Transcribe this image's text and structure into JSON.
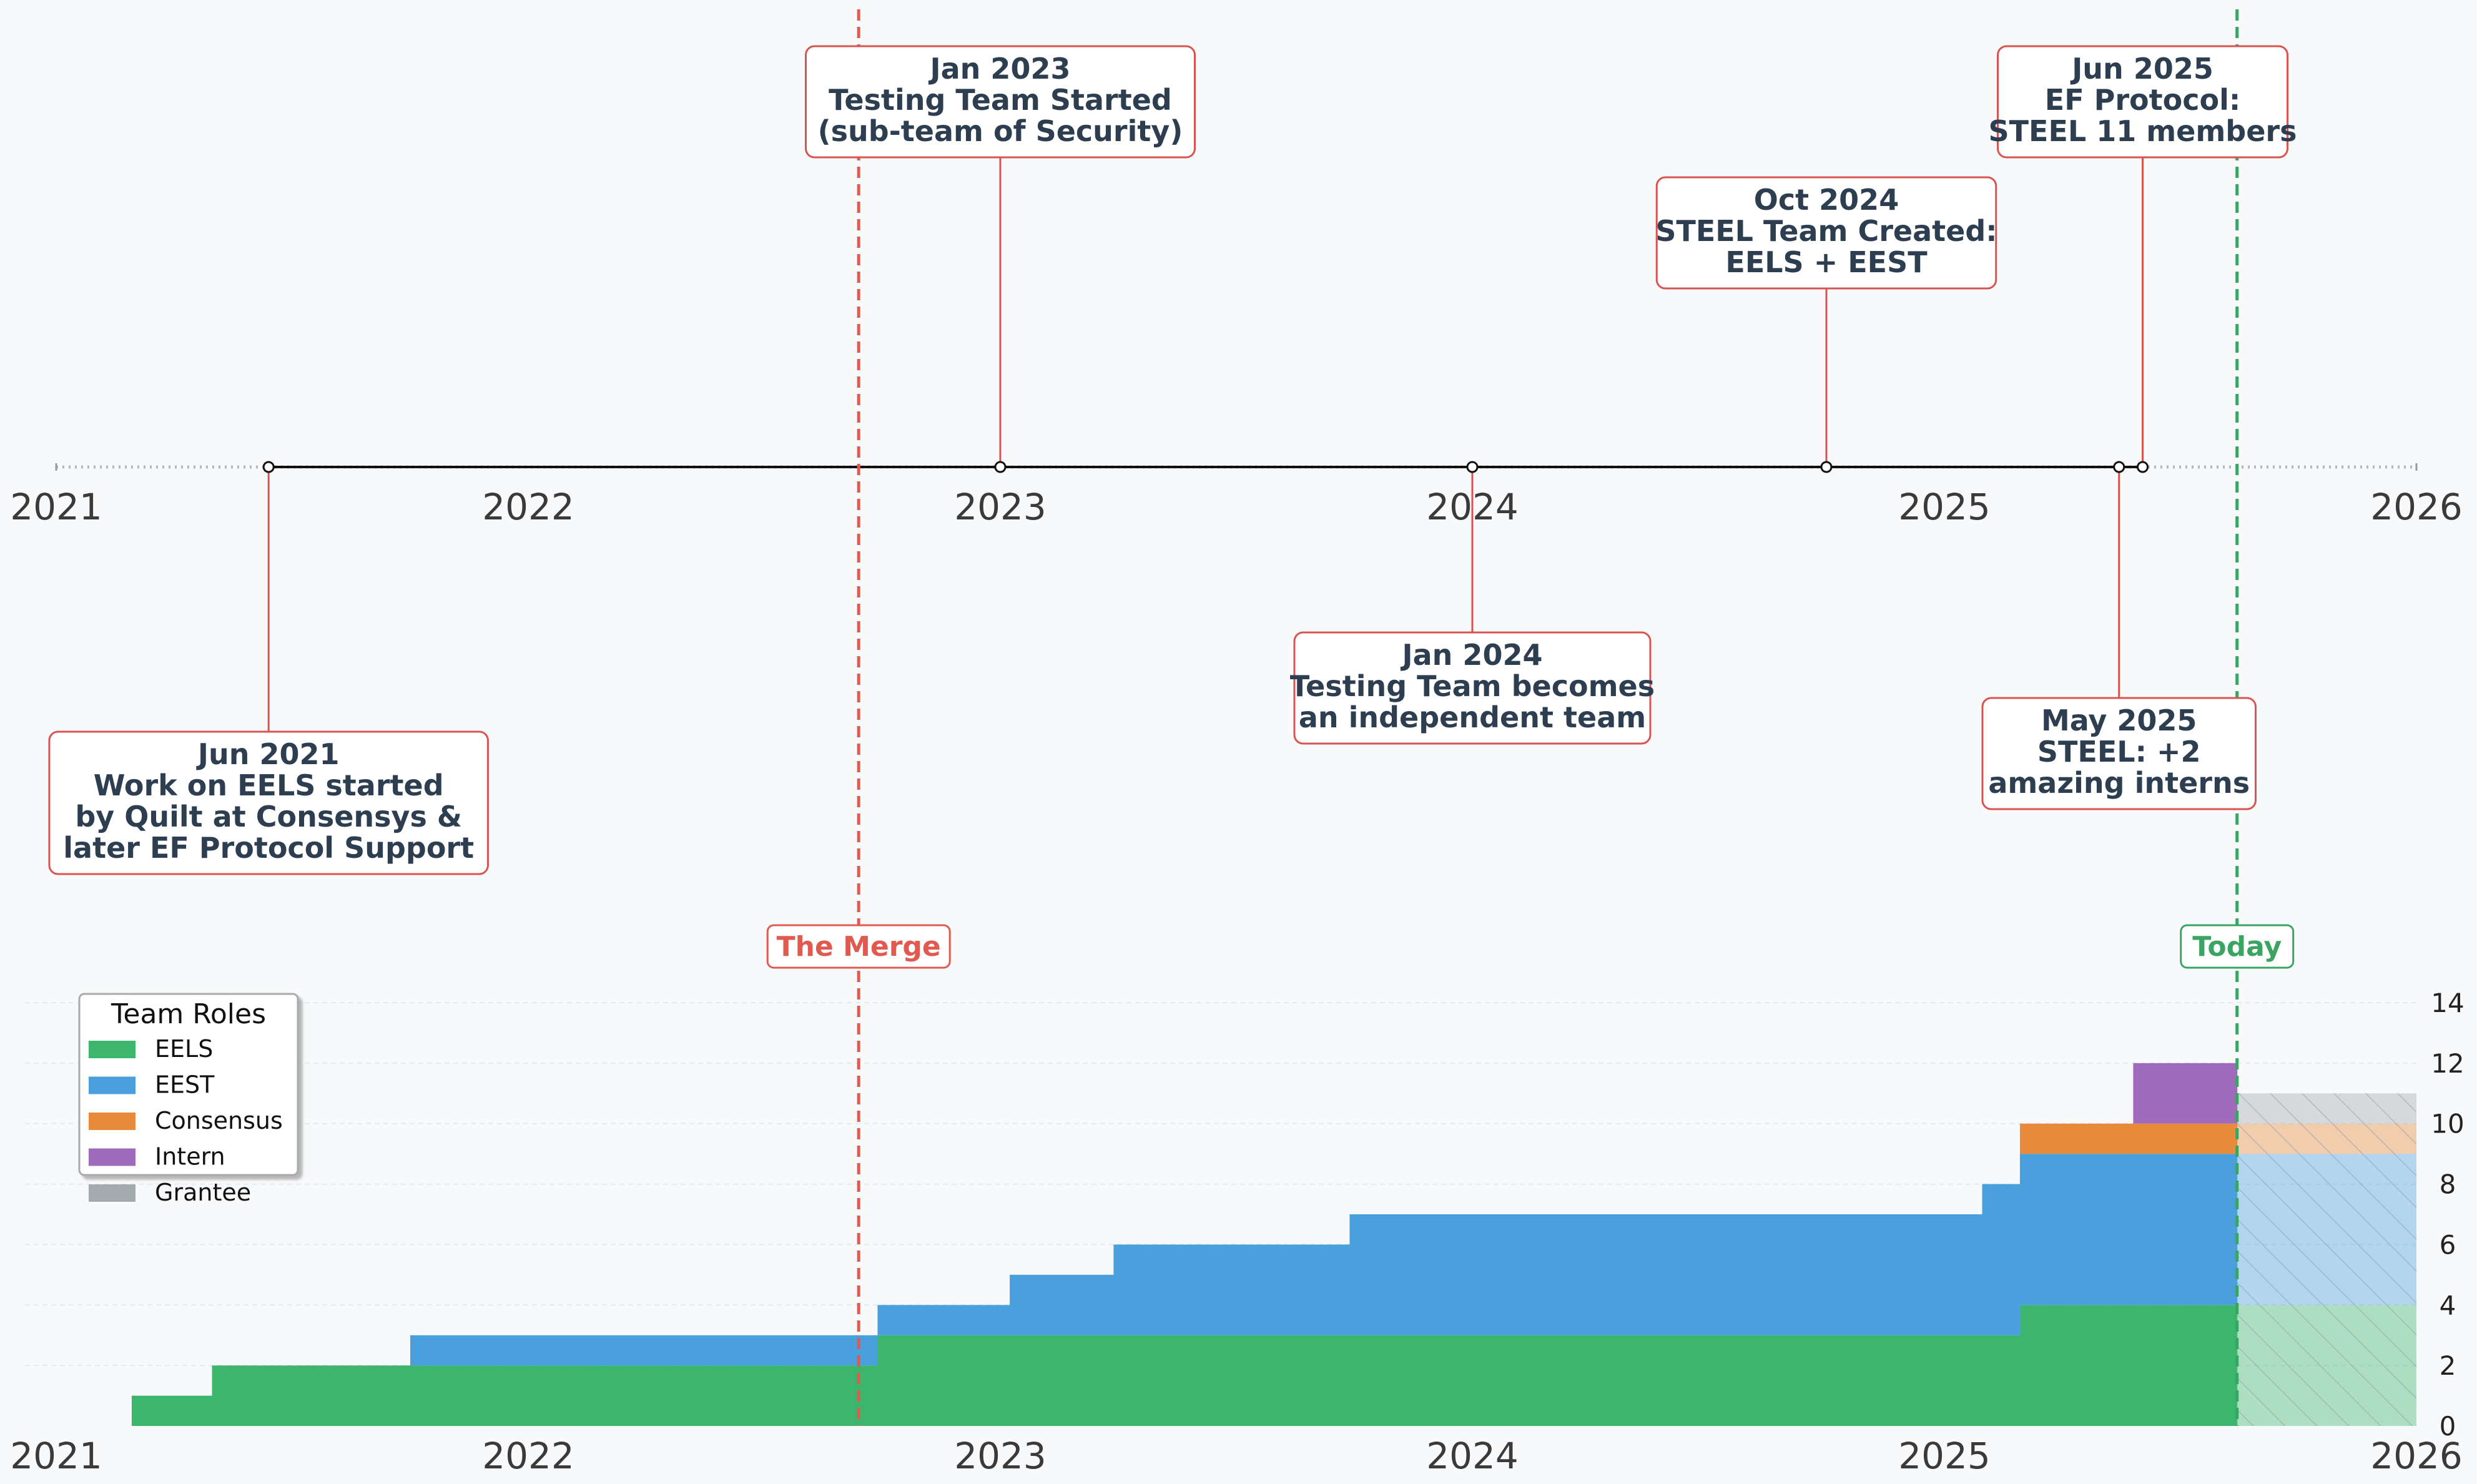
{
  "chart_data": [
    {
      "type": "timeline",
      "x_range": [
        2021,
        2026
      ],
      "year_ticks": [
        "2021",
        "2022",
        "2023",
        "2024",
        "2025",
        "2026"
      ],
      "events": [
        {
          "date": 2021.45,
          "side": "below",
          "lines": [
            "Jun 2021",
            "Work on EELS started",
            "by Quilt at Consensys &",
            "later EF Protocol Support"
          ]
        },
        {
          "date": 2023.0,
          "side": "above",
          "lines": [
            "Jan 2023",
            "Testing Team Started",
            "(sub-team of Security)"
          ]
        },
        {
          "date": 2024.0,
          "side": "below",
          "lines": [
            "Jan 2024",
            "Testing Team becomes",
            "an independent team"
          ]
        },
        {
          "date": 2024.75,
          "side": "above",
          "lines": [
            "Oct 2024",
            "STEEL Team Created:",
            "EELS + EEST"
          ]
        },
        {
          "date": 2025.37,
          "side": "below",
          "lines": [
            "May 2025",
            "STEEL: +2",
            "amazing interns"
          ]
        },
        {
          "date": 2025.42,
          "side": "above",
          "lines": [
            "Jun 2025",
            "EF Protocol:",
            "STEEL 11 members"
          ]
        }
      ],
      "markers": [
        {
          "label": "The Merge",
          "date": 2022.7,
          "color": "#e05a4f"
        },
        {
          "label": "Today",
          "date": 2025.62,
          "color": "#3aa463"
        }
      ]
    },
    {
      "type": "area",
      "stacked": true,
      "step": true,
      "x_range": [
        2021,
        2026
      ],
      "x_ticks": [
        "2021",
        "2022",
        "2023",
        "2024",
        "2025",
        "2026"
      ],
      "ylim": [
        0,
        14
      ],
      "y_ticks": [
        0,
        2,
        4,
        6,
        8,
        10,
        12,
        14
      ],
      "y_axis_side": "right",
      "legend": {
        "title": "Team Roles",
        "placement": "upper-left"
      },
      "x": [
        2021.16,
        2021.33,
        2021.75,
        2022.74,
        2023.02,
        2023.24,
        2023.74,
        2025.08,
        2025.16,
        2025.4,
        2025.62
      ],
      "series": [
        {
          "name": "EELS",
          "color": "#3cb66c",
          "values": [
            1,
            2,
            2,
            3,
            3,
            3,
            3,
            3,
            4,
            4,
            4
          ]
        },
        {
          "name": "EEST",
          "color": "#4aa0dc",
          "values": [
            0,
            0,
            1,
            1,
            2,
            3,
            4,
            5,
            5,
            5,
            5
          ]
        },
        {
          "name": "Consensus",
          "color": "#e88b3a",
          "values": [
            0,
            0,
            0,
            0,
            0,
            0,
            0,
            0,
            1,
            1,
            1
          ]
        },
        {
          "name": "Intern",
          "color": "#a06abd",
          "values": [
            0,
            0,
            0,
            0,
            0,
            0,
            0,
            0,
            0,
            2,
            0
          ]
        },
        {
          "name": "Grantee",
          "color": "#a3abae",
          "values": [
            0,
            0,
            0,
            0,
            0,
            0,
            0,
            0,
            0,
            0,
            1
          ]
        }
      ],
      "projection": {
        "from": 2025.62,
        "to": 2026,
        "hatched": true
      }
    }
  ]
}
